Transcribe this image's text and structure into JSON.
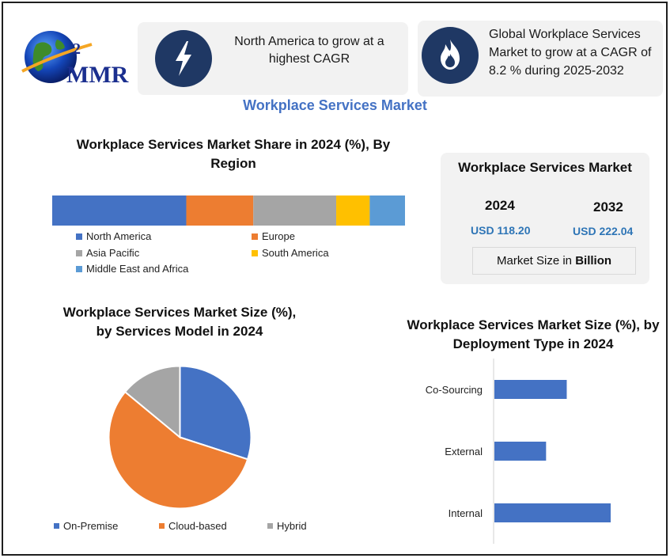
{
  "brand": {
    "logo_text": "MMR"
  },
  "highlights": [
    {
      "icon": "lightning-icon",
      "text": "North America to grow at a highest CAGR"
    },
    {
      "icon": "flame-icon",
      "text": "Global Workplace Services Market to grow at a CAGR of 8.2 % during 2025-2032"
    }
  ],
  "main_title": "Workplace Services Market",
  "market_size": {
    "title": "Workplace Services Market",
    "year1": "2024",
    "value1": "USD 118.20",
    "year2": "2032",
    "value2": "USD 222.04",
    "unit_prefix": "Market Size in ",
    "unit_bold": "Billion"
  },
  "colors": {
    "blue": "#4472c4",
    "orange": "#ed7d31",
    "gray": "#a5a5a5",
    "yellow": "#ffc000",
    "lightblue": "#5b9bd5",
    "navy": "#1f3864"
  },
  "chart_data": [
    {
      "type": "bar",
      "stacked": true,
      "orientation": "horizontal",
      "title": "Workplace Services Market Share in 2024 (%), By Region",
      "series": [
        {
          "name": "North America",
          "value": 38,
          "color": "#4472c4"
        },
        {
          "name": "Europe",
          "value": 19,
          "color": "#ed7d31"
        },
        {
          "name": "Asia Pacific",
          "value": 23.5,
          "color": "#a5a5a5"
        },
        {
          "name": "South America",
          "value": 9.5,
          "color": "#ffc000"
        },
        {
          "name": "Middle East and Africa",
          "value": 10,
          "color": "#5b9bd5"
        }
      ],
      "legend": "bottom"
    },
    {
      "type": "pie",
      "title": "Workplace Services Market Size (%), by Services Model in 2024",
      "categories": [
        "On-Premise",
        "Cloud-based",
        "Hybrid"
      ],
      "values": [
        30,
        56,
        14
      ],
      "colors": [
        "#4472c4",
        "#ed7d31",
        "#a5a5a5"
      ],
      "legend": "bottom"
    },
    {
      "type": "bar",
      "orientation": "horizontal",
      "title": "Workplace Services Market Size (%), by Deployment Type in 2024",
      "categories": [
        "Co-Sourcing",
        "External",
        "Internal"
      ],
      "values": [
        28,
        20,
        45
      ],
      "xlim": [
        0,
        60
      ],
      "color": "#4472c4"
    }
  ]
}
